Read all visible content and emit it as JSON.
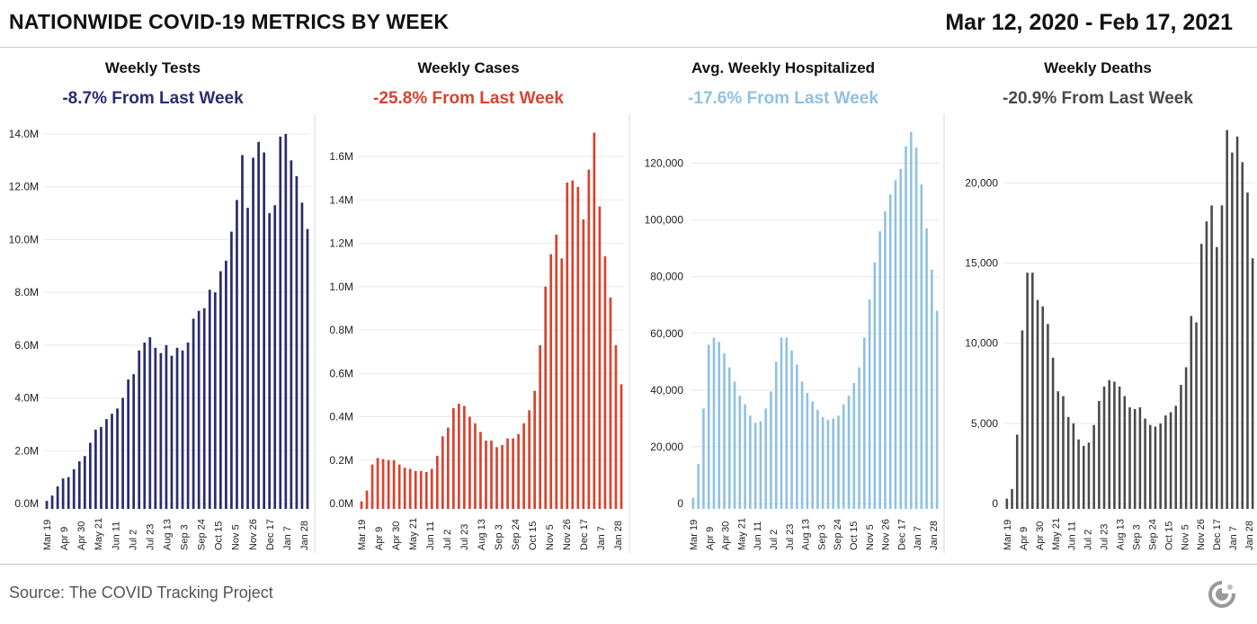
{
  "header": {
    "title": "NATIONWIDE COVID-19 METRICS BY WEEK",
    "date_range": "Mar 12, 2020 - Feb 17, 2021"
  },
  "footer": {
    "source": "Source: The COVID Tracking Project"
  },
  "colors": {
    "tests": "#2b2d6e",
    "cases": "#d9432f",
    "hospitalized": "#8fc1e3",
    "deaths": "#4a4a4a"
  },
  "x_labels": [
    "Mar 19",
    "Apr 9",
    "Apr 30",
    "May 21",
    "Jun 11",
    "Jul 2",
    "Jul 23",
    "Aug 13",
    "Sep 3",
    "Sep 24",
    "Oct 15",
    "Nov 5",
    "Nov 26",
    "Dec 17",
    "Jan 7",
    "Jan 28"
  ],
  "chart_data": [
    {
      "type": "bar",
      "title": "Weekly Tests",
      "subtitle": "-8.7% From Last Week",
      "color": "#2b2d6e",
      "ylim": [
        0,
        14000000
      ],
      "yticks": [
        0,
        2000000,
        4000000,
        6000000,
        8000000,
        10000000,
        12000000,
        14000000
      ],
      "ytick_labels": [
        "0.0M",
        "2.0M",
        "4.0M",
        "6.0M",
        "8.0M",
        "10.0M",
        "12.0M",
        "14.0M"
      ],
      "values": [
        100000,
        300000,
        650000,
        950000,
        1000000,
        1300000,
        1600000,
        1800000,
        2300000,
        2800000,
        2900000,
        3200000,
        3400000,
        3600000,
        4000000,
        4700000,
        4900000,
        5800000,
        6100000,
        6300000,
        5900000,
        5700000,
        6000000,
        5600000,
        5900000,
        5800000,
        6100000,
        7000000,
        7300000,
        7400000,
        8100000,
        8000000,
        8800000,
        9200000,
        10300000,
        11500000,
        13200000,
        11200000,
        13100000,
        13700000,
        13300000,
        11000000,
        11300000,
        13900000,
        14000000,
        13000000,
        12400000,
        11400000,
        10400000
      ]
    },
    {
      "type": "bar",
      "title": "Weekly Cases",
      "subtitle": "-25.8% From Last Week",
      "color": "#d9432f",
      "ylim": [
        0,
        1700000
      ],
      "yticks": [
        0,
        200000,
        400000,
        600000,
        800000,
        1000000,
        1200000,
        1400000,
        1600000
      ],
      "ytick_labels": [
        "0.0M",
        "0.2M",
        "0.4M",
        "0.6M",
        "0.8M",
        "1.0M",
        "1.2M",
        "1.4M",
        "1.6M"
      ],
      "values": [
        10000,
        60000,
        180000,
        210000,
        205000,
        200000,
        200000,
        180000,
        165000,
        160000,
        150000,
        150000,
        145000,
        160000,
        220000,
        310000,
        350000,
        440000,
        460000,
        450000,
        400000,
        370000,
        330000,
        290000,
        290000,
        260000,
        270000,
        300000,
        300000,
        320000,
        370000,
        430000,
        520000,
        730000,
        1000000,
        1150000,
        1240000,
        1130000,
        1480000,
        1490000,
        1460000,
        1310000,
        1540000,
        1710000,
        1370000,
        1140000,
        950000,
        730000,
        550000
      ]
    },
    {
      "type": "bar",
      "title": "Avg. Weekly Hospitalized",
      "subtitle": "-17.6% From Last Week",
      "color": "#8fc1e3",
      "ylim": [
        0,
        130000
      ],
      "yticks": [
        0,
        20000,
        40000,
        60000,
        80000,
        100000,
        120000
      ],
      "ytick_labels": [
        "0",
        "20,000",
        "40,000",
        "60,000",
        "80,000",
        "100,000",
        "120,000"
      ],
      "values": [
        2000,
        14000,
        33500,
        56000,
        58500,
        57000,
        53000,
        48000,
        43000,
        38000,
        35000,
        31000,
        28500,
        29000,
        33500,
        39500,
        50000,
        58500,
        58500,
        54000,
        49000,
        43000,
        39000,
        36000,
        33000,
        30500,
        29500,
        30000,
        31000,
        35000,
        38000,
        42500,
        48000,
        58500,
        72000,
        85000,
        96000,
        103000,
        109000,
        114000,
        118000,
        126000,
        131000,
        125500,
        112500,
        97000,
        82500,
        68000
      ]
    },
    {
      "type": "bar",
      "title": "Weekly Deaths",
      "subtitle": "-20.9% From Last Week",
      "color": "#4a4a4a",
      "ylim": [
        0,
        23000
      ],
      "yticks": [
        0,
        5000,
        10000,
        15000,
        20000
      ],
      "ytick_labels": [
        "0",
        "5,000",
        "10,000",
        "15,000",
        "20,000"
      ],
      "values": [
        300,
        900,
        4300,
        10800,
        14400,
        14400,
        12700,
        12300,
        11200,
        9100,
        7000,
        6700,
        5400,
        5000,
        4000,
        3600,
        3800,
        4900,
        6400,
        7300,
        7700,
        7600,
        7300,
        6700,
        6000,
        5900,
        6000,
        5300,
        4900,
        4800,
        5000,
        5500,
        5700,
        6100,
        7400,
        8500,
        11700,
        11300,
        16200,
        17600,
        18600,
        16000,
        18600,
        23300,
        21900,
        22900,
        21300,
        19400,
        15300
      ]
    }
  ]
}
